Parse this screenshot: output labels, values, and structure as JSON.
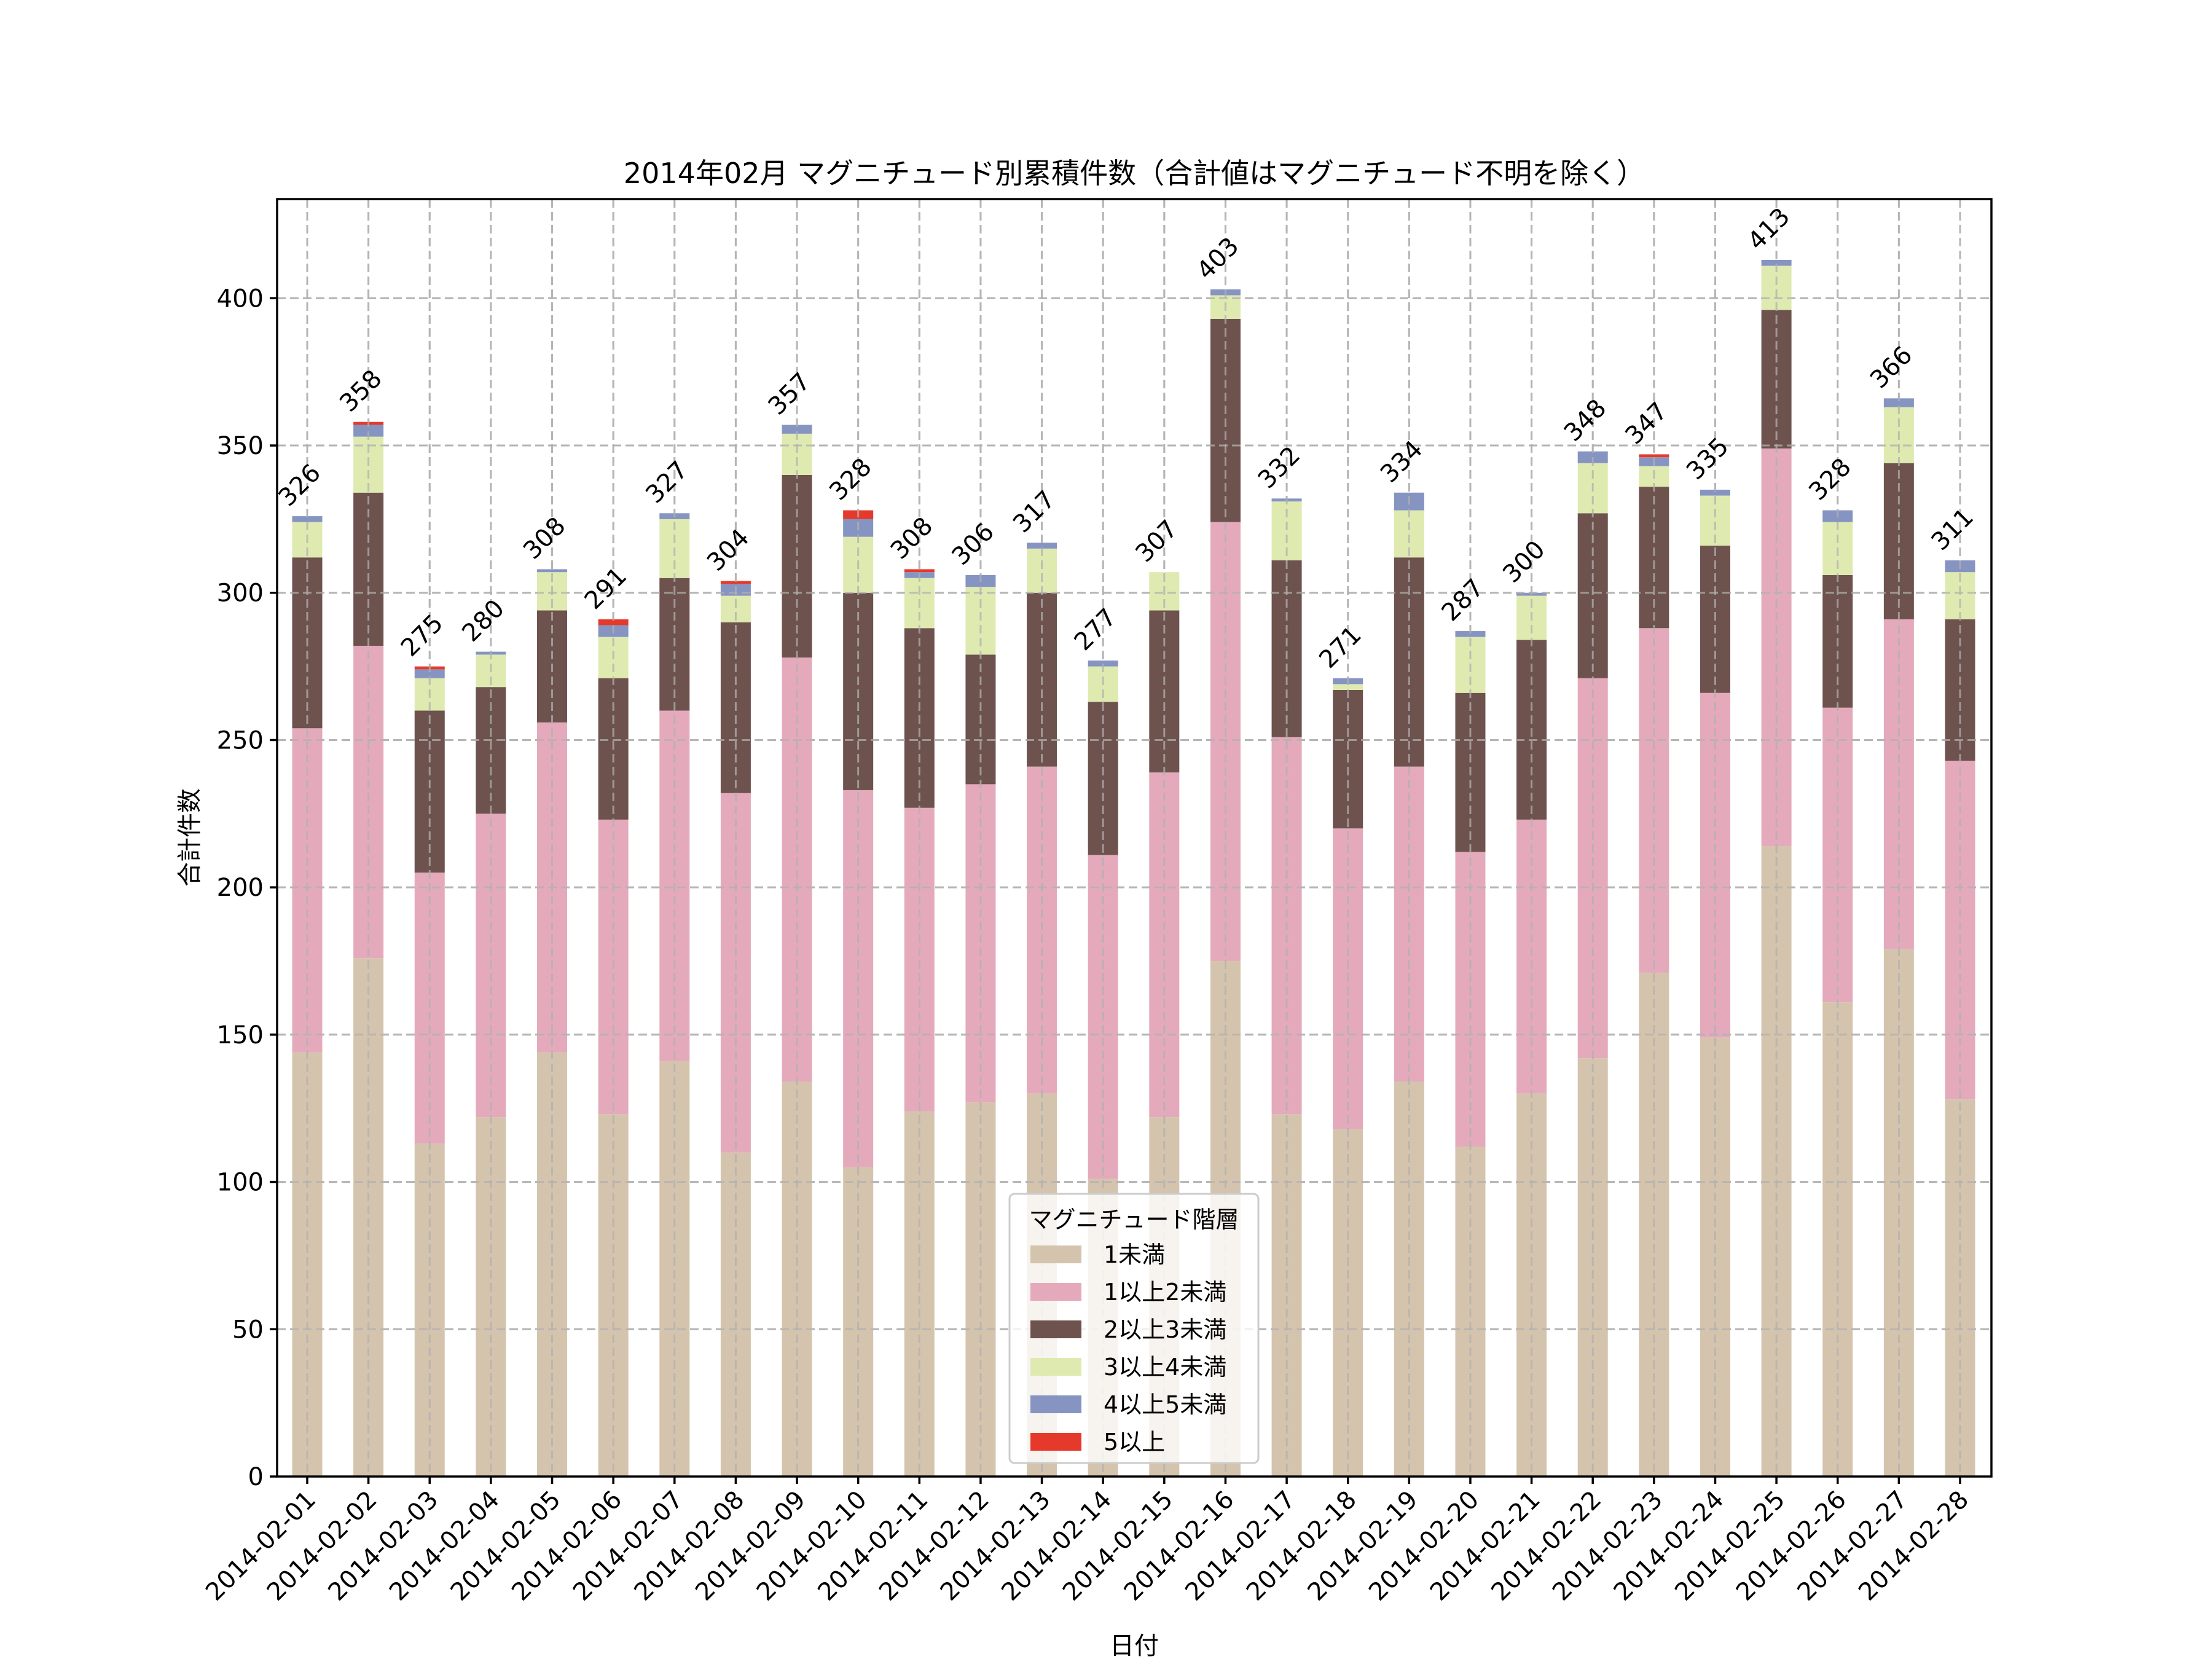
{
  "chart_data": {
    "type": "bar",
    "stacked": true,
    "title": "2014年02月 マグニチュード別累積件数（合計値はマグニチュード不明を除く）",
    "xlabel": "日付",
    "ylabel": "合計件数",
    "ylim": [
      0,
      433.65
    ],
    "yticks": [
      0,
      50,
      100,
      150,
      200,
      250,
      300,
      350,
      400
    ],
    "grid": true,
    "legend": {
      "title": "マグニチュード階層",
      "placement": "lower-center"
    },
    "categories": [
      "2014-02-01",
      "2014-02-02",
      "2014-02-03",
      "2014-02-04",
      "2014-02-05",
      "2014-02-06",
      "2014-02-07",
      "2014-02-08",
      "2014-02-09",
      "2014-02-10",
      "2014-02-11",
      "2014-02-12",
      "2014-02-13",
      "2014-02-14",
      "2014-02-15",
      "2014-02-16",
      "2014-02-17",
      "2014-02-18",
      "2014-02-19",
      "2014-02-20",
      "2014-02-21",
      "2014-02-22",
      "2014-02-23",
      "2014-02-24",
      "2014-02-25",
      "2014-02-26",
      "2014-02-27",
      "2014-02-28"
    ],
    "series": [
      {
        "name": "1未満",
        "color": "#d5c4ad",
        "values": [
          144,
          176,
          113,
          122,
          144,
          123,
          141,
          110,
          134,
          105,
          124,
          127,
          130,
          101,
          122,
          175,
          123,
          118,
          134,
          112,
          130,
          142,
          171,
          149,
          214,
          161,
          179,
          128
        ]
      },
      {
        "name": "1以上2未満",
        "color": "#e4aabb",
        "values": [
          110,
          106,
          92,
          103,
          112,
          100,
          119,
          122,
          144,
          128,
          103,
          108,
          111,
          110,
          117,
          149,
          128,
          102,
          107,
          100,
          93,
          129,
          117,
          117,
          135,
          100,
          112,
          115
        ]
      },
      {
        "name": "2以上3未満",
        "color": "#6d524d",
        "values": [
          58,
          52,
          55,
          43,
          38,
          48,
          45,
          58,
          62,
          67,
          61,
          44,
          59,
          52,
          55,
          69,
          60,
          47,
          71,
          54,
          61,
          56,
          48,
          50,
          47,
          45,
          53,
          48
        ]
      },
      {
        "name": "3以上4未満",
        "color": "#dfeab1",
        "values": [
          12,
          19,
          11,
          11,
          13,
          14,
          20,
          9,
          14,
          19,
          17,
          23,
          15,
          12,
          13,
          8,
          20,
          2,
          16,
          19,
          15,
          17,
          7,
          17,
          15,
          18,
          19,
          16
        ]
      },
      {
        "name": "4以上5未満",
        "color": "#8694c1",
        "values": [
          2,
          4,
          3,
          1,
          1,
          4,
          2,
          4,
          3,
          6,
          2,
          4,
          2,
          2,
          0,
          2,
          1,
          2,
          6,
          2,
          1,
          4,
          3,
          2,
          2,
          4,
          3,
          4
        ]
      },
      {
        "name": "5以上",
        "color": "#e53a2b",
        "values": [
          0,
          1,
          1,
          0,
          0,
          2,
          0,
          1,
          0,
          3,
          1,
          0,
          0,
          0,
          0,
          0,
          0,
          0,
          0,
          0,
          0,
          0,
          1,
          0,
          0,
          0,
          0,
          0
        ]
      }
    ],
    "totals": [
      326,
      358,
      275,
      280,
      308,
      291,
      327,
      304,
      357,
      328,
      308,
      306,
      317,
      277,
      307,
      403,
      332,
      271,
      334,
      287,
      300,
      348,
      347,
      335,
      413,
      328,
      366,
      311
    ]
  }
}
